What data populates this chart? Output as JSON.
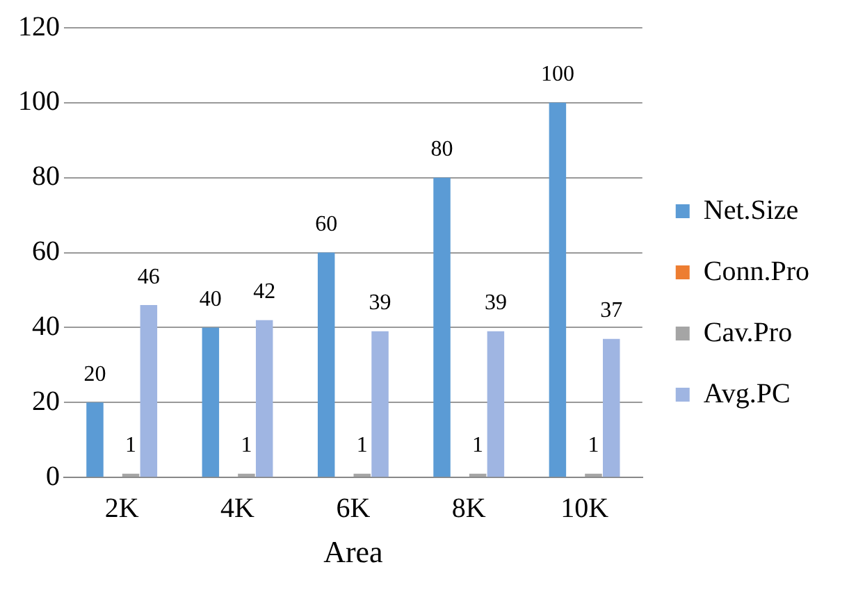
{
  "chart_data": {
    "type": "bar",
    "xlabel": "Area",
    "categories": [
      "2K",
      "4K",
      "6K",
      "8K",
      "10K"
    ],
    "series": [
      {
        "name": "Net.Size",
        "color": "#5b9bd5",
        "values": [
          20,
          40,
          60,
          80,
          100
        ],
        "value_labels": [
          "20",
          "40",
          "60",
          "80",
          "100"
        ]
      },
      {
        "name": "Conn.Pro",
        "color": "#ed7d31",
        "values": [
          0,
          0,
          0,
          0,
          0
        ],
        "value_labels": [
          null,
          null,
          null,
          null,
          null
        ]
      },
      {
        "name": "Cav.Pro",
        "color": "#a5a5a5",
        "values": [
          1,
          1,
          1,
          1,
          1
        ],
        "value_labels": [
          "1",
          "1",
          "1",
          "1",
          "1"
        ]
      },
      {
        "name": "Avg.PC",
        "color": "#9fb5e2",
        "values": [
          46,
          42,
          39,
          39,
          37
        ],
        "value_labels": [
          "46",
          "42",
          "39",
          "39",
          "37"
        ]
      }
    ],
    "ylim": [
      0,
      120
    ],
    "yticks": [
      0,
      20,
      40,
      60,
      80,
      100,
      120
    ],
    "grid": "y",
    "legend": "right"
  }
}
